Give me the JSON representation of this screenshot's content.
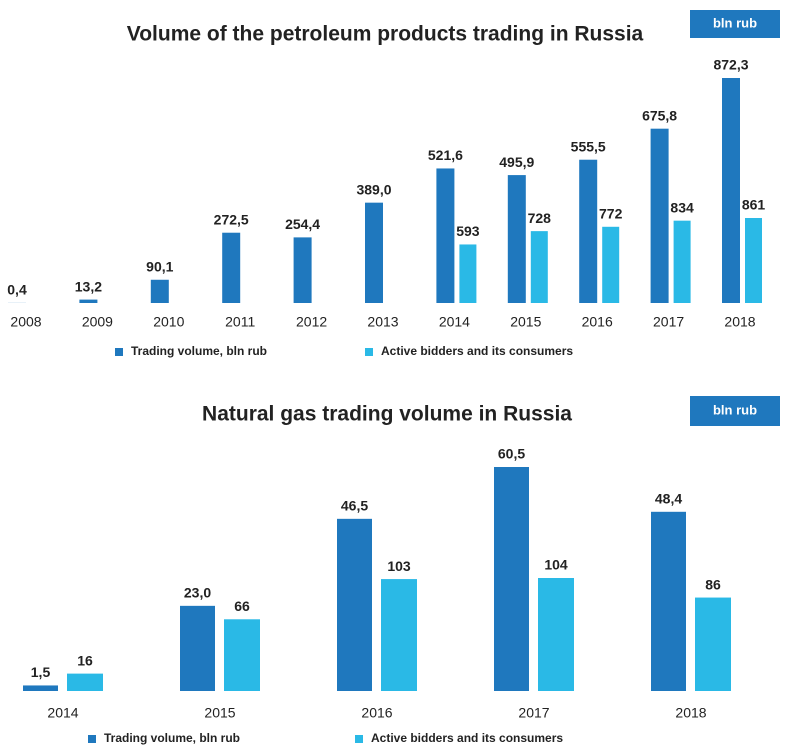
{
  "chart_data": [
    {
      "type": "bar",
      "title": "Volume of the petroleum products trading in Russia",
      "badge": "bln rub",
      "categories": [
        "2008",
        "2009",
        "2010",
        "2011",
        "2012",
        "2013",
        "2014",
        "2015",
        "2016",
        "2017",
        "2018"
      ],
      "series": [
        {
          "name": "Trading volume, bln rub",
          "color": "#1f78be",
          "values": [
            0.4,
            13.2,
            90.1,
            272.5,
            254.4,
            389.0,
            521.6,
            495.9,
            555.5,
            675.8,
            872.3
          ],
          "value_labels": [
            "0,4",
            "13,2",
            "90,1",
            "272,5",
            "254,4",
            "389,0",
            "521,6",
            "495,9",
            "555,5",
            "675,8",
            "872,3"
          ]
        },
        {
          "name": "Active bidders and its consumers",
          "color": "#2ab9e6",
          "values": [
            null,
            null,
            null,
            null,
            null,
            null,
            593,
            728,
            772,
            834,
            861
          ]
        }
      ]
    },
    {
      "type": "bar",
      "title": "Natural gas trading volume in Russia",
      "badge": "bln rub",
      "categories": [
        "2014",
        "2015",
        "2016",
        "2017",
        "2018"
      ],
      "series": [
        {
          "name": "Trading volume, bln rub",
          "color": "#1f78be",
          "values": [
            1.5,
            23.0,
            46.5,
            60.5,
            48.4
          ],
          "value_labels": [
            "1,5",
            "23,0",
            "46,5",
            "60,5",
            "48,4"
          ]
        },
        {
          "name": "Active bidders and its consumers",
          "color": "#2ab9e6",
          "values": [
            16,
            66,
            103,
            104,
            86
          ]
        }
      ]
    }
  ]
}
